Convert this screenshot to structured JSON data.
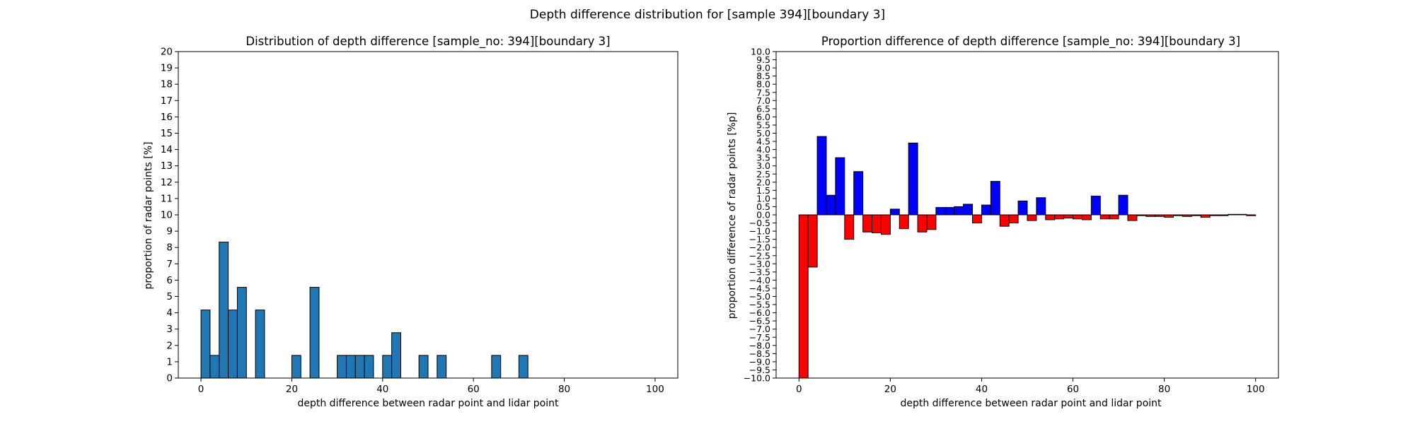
{
  "figure": {
    "suptitle": "Depth difference distribution for [sample 394][boundary 3]"
  },
  "chart_data": [
    {
      "type": "bar",
      "title": "Distribution of depth difference [sample_no: 394][boundary 3]",
      "xlabel": "depth difference between radar point and lidar point",
      "ylabel": "proportion of radar points [%]",
      "xlim": [
        -5,
        105
      ],
      "ylim": [
        0,
        20
      ],
      "xticks": [
        0,
        20,
        40,
        60,
        80,
        100
      ],
      "yticks": [
        0,
        1,
        2,
        3,
        4,
        5,
        6,
        7,
        8,
        9,
        10,
        11,
        12,
        13,
        14,
        15,
        16,
        17,
        18,
        19,
        20
      ],
      "bin_width": 2,
      "bins": [
        {
          "x": 0,
          "value": 4.17
        },
        {
          "x": 2,
          "value": 1.39
        },
        {
          "x": 4,
          "value": 8.33
        },
        {
          "x": 6,
          "value": 4.17
        },
        {
          "x": 8,
          "value": 5.56
        },
        {
          "x": 12,
          "value": 4.17
        },
        {
          "x": 20,
          "value": 1.39
        },
        {
          "x": 24,
          "value": 5.56
        },
        {
          "x": 30,
          "value": 1.39
        },
        {
          "x": 32,
          "value": 1.39
        },
        {
          "x": 34,
          "value": 1.39
        },
        {
          "x": 36,
          "value": 1.39
        },
        {
          "x": 40,
          "value": 1.39
        },
        {
          "x": 42,
          "value": 2.78
        },
        {
          "x": 48,
          "value": 1.39
        },
        {
          "x": 52,
          "value": 1.39
        },
        {
          "x": 64,
          "value": 1.39
        },
        {
          "x": 70,
          "value": 1.39
        }
      ],
      "bar_color": "#1f77b4",
      "grid": false
    },
    {
      "type": "bar",
      "title": "Proportion difference of depth difference [sample_no: 394][boundary 3]",
      "xlabel": "depth difference between radar point and lidar point",
      "ylabel": "proportion difference of radar points [%p]",
      "xlim": [
        -5,
        105
      ],
      "ylim": [
        -10,
        10
      ],
      "xticks": [
        0,
        20,
        40,
        60,
        80,
        100
      ],
      "yticks": [
        -10.0,
        -9.5,
        -9.0,
        -8.5,
        -8.0,
        -7.5,
        -7.0,
        -6.5,
        -6.0,
        -5.5,
        -5.0,
        -4.5,
        -4.0,
        -3.5,
        -3.0,
        -2.5,
        -2.0,
        -1.5,
        -1.0,
        -0.5,
        0.0,
        0.5,
        1.0,
        1.5,
        2.0,
        2.5,
        3.0,
        3.5,
        4.0,
        4.5,
        5.0,
        5.5,
        6.0,
        6.5,
        7.0,
        7.5,
        8.0,
        8.5,
        9.0,
        9.5,
        10.0
      ],
      "bin_width": 2,
      "positive_color": "#0000ff",
      "negative_color": "#ff0000",
      "bins": [
        {
          "x": 0,
          "value": -10.0
        },
        {
          "x": 2,
          "value": -3.2
        },
        {
          "x": 4,
          "value": 4.8
        },
        {
          "x": 6,
          "value": 1.2
        },
        {
          "x": 8,
          "value": 3.5
        },
        {
          "x": 10,
          "value": -1.5
        },
        {
          "x": 12,
          "value": 2.65
        },
        {
          "x": 14,
          "value": -1.05
        },
        {
          "x": 16,
          "value": -1.1
        },
        {
          "x": 18,
          "value": -1.2
        },
        {
          "x": 20,
          "value": 0.35
        },
        {
          "x": 22,
          "value": -0.85
        },
        {
          "x": 24,
          "value": 4.4
        },
        {
          "x": 26,
          "value": -1.05
        },
        {
          "x": 28,
          "value": -0.9
        },
        {
          "x": 30,
          "value": 0.45
        },
        {
          "x": 32,
          "value": 0.45
        },
        {
          "x": 34,
          "value": 0.5
        },
        {
          "x": 36,
          "value": 0.65
        },
        {
          "x": 38,
          "value": -0.5
        },
        {
          "x": 40,
          "value": 0.6
        },
        {
          "x": 42,
          "value": 2.05
        },
        {
          "x": 44,
          "value": -0.7
        },
        {
          "x": 46,
          "value": -0.5
        },
        {
          "x": 48,
          "value": 0.85
        },
        {
          "x": 50,
          "value": -0.35
        },
        {
          "x": 52,
          "value": 1.05
        },
        {
          "x": 54,
          "value": -0.3
        },
        {
          "x": 56,
          "value": -0.25
        },
        {
          "x": 58,
          "value": -0.2
        },
        {
          "x": 60,
          "value": -0.25
        },
        {
          "x": 62,
          "value": -0.3
        },
        {
          "x": 64,
          "value": 1.15
        },
        {
          "x": 66,
          "value": -0.25
        },
        {
          "x": 68,
          "value": -0.25
        },
        {
          "x": 70,
          "value": 1.2
        },
        {
          "x": 72,
          "value": -0.35
        },
        {
          "x": 74,
          "value": -0.05
        },
        {
          "x": 76,
          "value": -0.1
        },
        {
          "x": 78,
          "value": -0.1
        },
        {
          "x": 80,
          "value": -0.15
        },
        {
          "x": 82,
          "value": -0.05
        },
        {
          "x": 84,
          "value": -0.1
        },
        {
          "x": 86,
          "value": -0.05
        },
        {
          "x": 88,
          "value": -0.15
        },
        {
          "x": 90,
          "value": -0.05
        },
        {
          "x": 92,
          "value": -0.05
        },
        {
          "x": 94,
          "value": 0.03
        },
        {
          "x": 96,
          "value": 0.03
        },
        {
          "x": 98,
          "value": -0.05
        }
      ],
      "grid": false
    }
  ]
}
